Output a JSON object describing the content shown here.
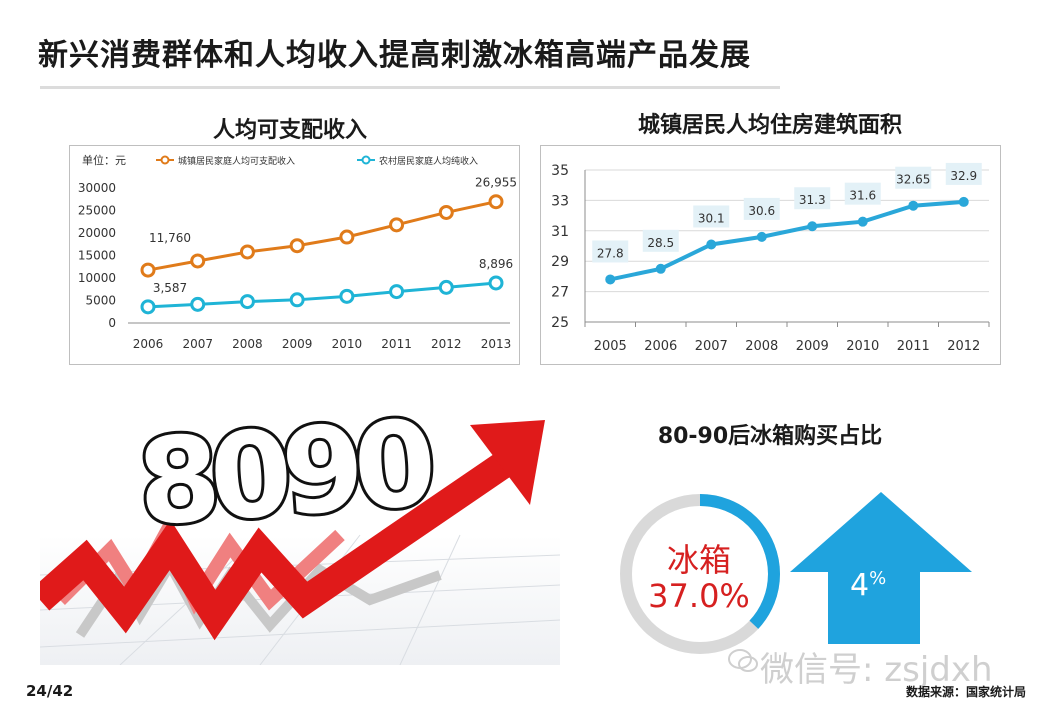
{
  "title": "新兴消费群体和人均收入提高刺激冰箱高端产品发展",
  "page_number": "24/42",
  "source_note": "数据来源：国家统计局",
  "watermark": "微信号: zsjdxh",
  "colors": {
    "urban": "#e07b1a",
    "rural": "#1fb4d6",
    "housing": "#2aa7d9",
    "arrow_red": "#e01a1a",
    "donut_blue": "#1fa3de",
    "donut_grey": "#d9d9d9",
    "donut_text": "#d62020"
  },
  "income_section": {
    "title": "人均可支配收入"
  },
  "housing_section": {
    "title": "城镇居民人均住房建筑面积"
  },
  "illustration": {
    "label": "8090"
  },
  "share_section": {
    "title": "80-90后冰箱购买占比",
    "donut_label": "冰箱",
    "donut_value_text": "37.0%",
    "donut_value": 37.0,
    "arrow_value": "4",
    "arrow_unit": "%"
  },
  "chart_data": [
    {
      "type": "line",
      "title": "人均可支配收入",
      "unit_label": "单位：元",
      "categories": [
        "2006",
        "2007",
        "2008",
        "2009",
        "2010",
        "2011",
        "2012",
        "2013"
      ],
      "ylim": [
        0,
        30000
      ],
      "yticks": [
        0,
        5000,
        10000,
        15000,
        20000,
        25000,
        30000
      ],
      "legend_position": "top",
      "grid": false,
      "series": [
        {
          "name": "城镇居民家庭人均可支配收入",
          "values": [
            11760,
            13786,
            15781,
            17175,
            19109,
            21810,
            24565,
            26955
          ]
        },
        {
          "name": "农村居民家庭人均纯收入",
          "values": [
            3587,
            4140,
            4761,
            5153,
            5919,
            6977,
            7917,
            8896
          ]
        }
      ],
      "data_labels": [
        {
          "series": 0,
          "index": 0,
          "text": "11,760"
        },
        {
          "series": 0,
          "index": 7,
          "text": "26,955"
        },
        {
          "series": 1,
          "index": 0,
          "text": "3,587"
        },
        {
          "series": 1,
          "index": 7,
          "text": "8,896"
        }
      ]
    },
    {
      "type": "line",
      "title": "城镇居民人均住房建筑面积",
      "categories": [
        "2005",
        "2006",
        "2007",
        "2008",
        "2009",
        "2010",
        "2011",
        "2012"
      ],
      "ylim": [
        25,
        35
      ],
      "yticks": [
        25,
        27,
        29,
        31,
        33,
        35
      ],
      "grid": true,
      "series": [
        {
          "values": [
            27.8,
            28.5,
            30.1,
            30.6,
            31.3,
            31.6,
            32.65,
            32.9
          ]
        }
      ],
      "data_labels_text": [
        "27.8",
        "28.5",
        "30.1",
        "30.6",
        "31.3",
        "31.6",
        "32.65",
        "32.9"
      ]
    }
  ]
}
